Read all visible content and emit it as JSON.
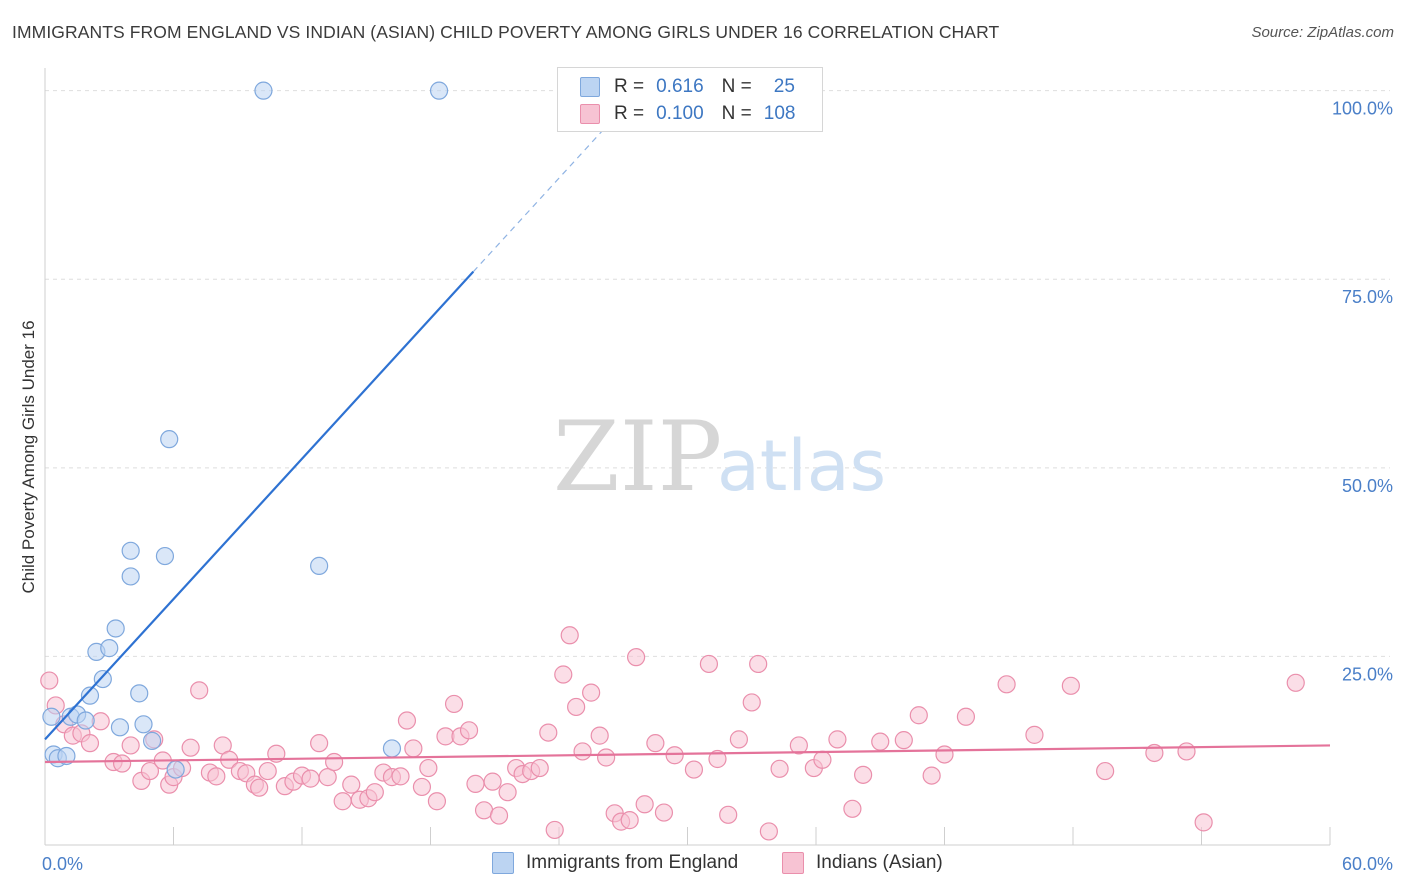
{
  "title": "IMMIGRANTS FROM ENGLAND VS INDIAN (ASIAN) CHILD POVERTY AMONG GIRLS UNDER 16 CORRELATION CHART",
  "source": "Source: ZipAtlas.com",
  "watermark": {
    "zip": "ZIP",
    "atlas": "atlas"
  },
  "legend": {
    "rows": [
      {
        "r_label": "R =",
        "r_value": "0.616",
        "n_label": "N =",
        "n_value": "25"
      },
      {
        "r_label": "R =",
        "r_value": "0.100",
        "n_label": "N =",
        "n_value": "108"
      }
    ]
  },
  "bottom_legend": [
    "Immigrants from England",
    "Indians (Asian)"
  ],
  "colors": {
    "blue_fill": "#bcd4f2",
    "blue_stroke": "#7fa8dd",
    "blue_line": "#2e72d2",
    "pink_fill": "#f7c3d3",
    "pink_stroke": "#ea8fac",
    "pink_line": "#e4739a",
    "grid": "#dedede",
    "tick_text": "#4a7fc8"
  },
  "chart_data": {
    "type": "scatter",
    "title": "IMMIGRANTS FROM ENGLAND VS INDIAN (ASIAN) CHILD POVERTY AMONG GIRLS UNDER 16 CORRELATION CHART",
    "xlabel": "",
    "ylabel": "Child Poverty Among Girls Under 16",
    "xlim": [
      0,
      60
    ],
    "ylim": [
      0,
      103
    ],
    "x_tick_labels": [
      "0.0%",
      "60.0%"
    ],
    "y_tick_labels": [
      "100.0%",
      "75.0%",
      "50.0%",
      "25.0%"
    ],
    "y_ticks": [
      100,
      75,
      50,
      25
    ],
    "series": [
      {
        "name": "Immigrants from England",
        "color": "blue",
        "r": 0.616,
        "n": 25,
        "trend": {
          "x0": 0.0,
          "y0": 14.0,
          "x1": 20.0,
          "y1": 76.0,
          "dash_x1": 26.0,
          "dash_y1": 94.6
        },
        "points": [
          [
            0.4,
            12.0
          ],
          [
            0.6,
            11.5
          ],
          [
            1.0,
            11.8
          ],
          [
            1.2,
            17.0
          ],
          [
            1.5,
            17.3
          ],
          [
            1.9,
            16.5
          ],
          [
            2.1,
            19.8
          ],
          [
            2.4,
            25.6
          ],
          [
            3.0,
            26.1
          ],
          [
            2.7,
            22.0
          ],
          [
            3.3,
            28.7
          ],
          [
            4.0,
            39.0
          ],
          [
            4.0,
            35.6
          ],
          [
            4.4,
            20.1
          ],
          [
            4.6,
            16.0
          ],
          [
            3.5,
            15.6
          ],
          [
            5.0,
            13.8
          ],
          [
            5.6,
            38.3
          ],
          [
            5.8,
            53.8
          ],
          [
            6.1,
            10.0
          ],
          [
            10.2,
            100.0
          ],
          [
            12.8,
            37.0
          ],
          [
            16.2,
            12.8
          ],
          [
            18.4,
            100.0
          ],
          [
            0.3,
            17.0
          ]
        ]
      },
      {
        "name": "Indians (Asian)",
        "color": "pink",
        "r": 0.1,
        "n": 108,
        "trend": {
          "x0": 0.0,
          "y0": 11.0,
          "x1": 60.0,
          "y1": 13.2
        },
        "points": [
          [
            0.2,
            21.8
          ],
          [
            0.5,
            18.5
          ],
          [
            0.9,
            16.0
          ],
          [
            1.3,
            14.5
          ],
          [
            1.7,
            14.8
          ],
          [
            2.1,
            13.5
          ],
          [
            2.6,
            16.4
          ],
          [
            3.2,
            11.0
          ],
          [
            3.6,
            10.8
          ],
          [
            4.0,
            13.2
          ],
          [
            4.5,
            8.5
          ],
          [
            4.9,
            9.8
          ],
          [
            5.1,
            14.0
          ],
          [
            5.5,
            11.2
          ],
          [
            5.8,
            8.0
          ],
          [
            6.0,
            9.0
          ],
          [
            6.4,
            10.2
          ],
          [
            6.8,
            12.9
          ],
          [
            7.2,
            20.5
          ],
          [
            7.7,
            9.6
          ],
          [
            8.0,
            9.1
          ],
          [
            8.3,
            13.2
          ],
          [
            8.6,
            11.3
          ],
          [
            9.1,
            9.8
          ],
          [
            9.4,
            9.5
          ],
          [
            9.8,
            8.0
          ],
          [
            10.0,
            7.6
          ],
          [
            10.4,
            9.8
          ],
          [
            10.8,
            12.1
          ],
          [
            11.2,
            7.8
          ],
          [
            11.6,
            8.4
          ],
          [
            12.0,
            9.2
          ],
          [
            12.4,
            8.8
          ],
          [
            12.8,
            13.5
          ],
          [
            13.2,
            9.0
          ],
          [
            13.5,
            11.0
          ],
          [
            13.9,
            5.8
          ],
          [
            14.3,
            8.0
          ],
          [
            14.7,
            6.0
          ],
          [
            15.1,
            6.2
          ],
          [
            15.4,
            7.0
          ],
          [
            15.8,
            9.6
          ],
          [
            16.2,
            9.0
          ],
          [
            16.6,
            9.1
          ],
          [
            16.9,
            16.5
          ],
          [
            17.2,
            12.8
          ],
          [
            17.6,
            7.7
          ],
          [
            17.9,
            10.2
          ],
          [
            18.3,
            5.8
          ],
          [
            18.7,
            14.4
          ],
          [
            19.1,
            18.7
          ],
          [
            19.4,
            14.4
          ],
          [
            19.8,
            15.2
          ],
          [
            20.1,
            8.1
          ],
          [
            20.5,
            4.6
          ],
          [
            20.9,
            8.4
          ],
          [
            21.2,
            3.9
          ],
          [
            21.6,
            7.0
          ],
          [
            22.0,
            10.2
          ],
          [
            22.3,
            9.4
          ],
          [
            22.7,
            9.8
          ],
          [
            23.1,
            10.2
          ],
          [
            23.5,
            14.9
          ],
          [
            23.8,
            2.0
          ],
          [
            24.2,
            22.6
          ],
          [
            24.5,
            27.8
          ],
          [
            24.8,
            18.3
          ],
          [
            25.1,
            12.4
          ],
          [
            25.5,
            20.2
          ],
          [
            25.9,
            14.5
          ],
          [
            26.2,
            11.6
          ],
          [
            26.6,
            4.2
          ],
          [
            26.9,
            3.1
          ],
          [
            27.3,
            3.3
          ],
          [
            27.6,
            24.9
          ],
          [
            28.0,
            5.4
          ],
          [
            28.5,
            13.5
          ],
          [
            28.9,
            4.3
          ],
          [
            29.4,
            11.9
          ],
          [
            30.3,
            10.0
          ],
          [
            31.0,
            24.0
          ],
          [
            31.4,
            11.4
          ],
          [
            31.9,
            4.0
          ],
          [
            32.4,
            14.0
          ],
          [
            33.0,
            18.9
          ],
          [
            33.3,
            24.0
          ],
          [
            33.8,
            1.8
          ],
          [
            34.3,
            10.1
          ],
          [
            35.2,
            13.2
          ],
          [
            35.9,
            10.2
          ],
          [
            36.3,
            11.3
          ],
          [
            37.0,
            14.0
          ],
          [
            37.7,
            4.8
          ],
          [
            38.2,
            9.3
          ],
          [
            39.0,
            13.7
          ],
          [
            40.1,
            13.9
          ],
          [
            40.8,
            17.2
          ],
          [
            41.4,
            9.2
          ],
          [
            42.0,
            12.0
          ],
          [
            43.0,
            17.0
          ],
          [
            44.9,
            21.3
          ],
          [
            46.2,
            14.6
          ],
          [
            47.9,
            21.1
          ],
          [
            49.5,
            9.8
          ],
          [
            51.8,
            12.2
          ],
          [
            53.3,
            12.4
          ],
          [
            54.1,
            3.0
          ],
          [
            58.4,
            21.5
          ]
        ]
      }
    ]
  }
}
